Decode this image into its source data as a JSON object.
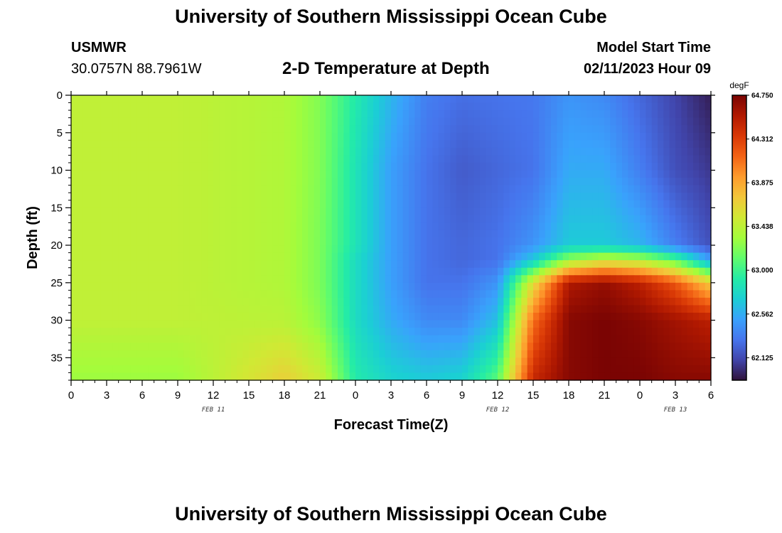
{
  "header": {
    "title": "University of Southern Mississippi Ocean Cube",
    "station_name": "USMWR",
    "coordinates": "30.0757N  88.7961W",
    "plot_title": "2-D Temperature at Depth",
    "model_start_label": "Model Start Time",
    "model_start_value": "02/11/2023 Hour 09"
  },
  "footer": {
    "title": "University of Southern Mississippi Ocean Cube"
  },
  "chart_data": {
    "type": "heatmap",
    "title": "2-D Temperature at Depth",
    "xlabel": "Forecast Time(Z)",
    "ylabel": "Depth (ft)",
    "x_tick_labels": [
      "0",
      "3",
      "6",
      "9",
      "12",
      "15",
      "18",
      "21",
      "0",
      "3",
      "6",
      "9",
      "12",
      "15",
      "18",
      "21",
      "0",
      "3",
      "6"
    ],
    "x_range_hours": [
      0,
      54
    ],
    "date_labels": [
      {
        "text": "FEB 11",
        "hour": 12
      },
      {
        "text": "FEB 12",
        "hour": 36
      },
      {
        "text": "FEB 13",
        "hour": 51
      }
    ],
    "y_tick_labels": [
      0,
      5,
      10,
      15,
      20,
      25,
      30,
      35
    ],
    "y_range_ft": [
      0,
      38
    ],
    "colorbar": {
      "unit": "degF",
      "min": 61.9,
      "max": 64.75,
      "ticks": [
        64.75,
        64.312,
        63.875,
        63.438,
        63.0,
        62.562,
        62.125
      ],
      "tick_labels": [
        "64.750",
        "64.312",
        "63.875",
        "63.438",
        "63.000",
        "62.562",
        "62.125"
      ],
      "colors": [
        "#30123b",
        "#4145ab",
        "#4675ed",
        "#39a2fc",
        "#1bcfd4",
        "#24eca6",
        "#61fc6c",
        "#a4fc3b",
        "#d1e834",
        "#f3c63a",
        "#fe9b2d",
        "#f36315",
        "#d93806",
        "#b11901",
        "#7a0403"
      ]
    },
    "depth_levels_ft": [
      0,
      10,
      20,
      22,
      25,
      30,
      38
    ],
    "time_hours": [
      0,
      9,
      18,
      21,
      24,
      27,
      30,
      33,
      36,
      39,
      42,
      45,
      48,
      51,
      54
    ],
    "temperature_degF": [
      [
        63.45,
        63.45,
        63.38,
        63.22,
        62.9,
        62.6,
        62.35,
        62.28,
        62.3,
        62.32,
        62.45,
        62.4,
        62.25,
        62.1,
        61.95
      ],
      [
        63.45,
        63.45,
        63.38,
        63.22,
        62.85,
        62.5,
        62.3,
        62.2,
        62.25,
        62.3,
        62.55,
        62.55,
        62.35,
        62.15,
        62.05
      ],
      [
        63.45,
        63.45,
        63.38,
        63.2,
        62.85,
        62.5,
        62.3,
        62.25,
        62.3,
        62.45,
        62.7,
        62.7,
        62.6,
        62.35,
        62.15
      ],
      [
        63.45,
        63.45,
        63.38,
        63.2,
        62.8,
        62.5,
        62.3,
        62.25,
        62.3,
        62.7,
        63.3,
        63.5,
        63.4,
        63.1,
        62.5
      ],
      [
        63.45,
        63.45,
        63.38,
        63.2,
        62.8,
        62.5,
        62.3,
        62.3,
        62.45,
        63.6,
        64.55,
        64.65,
        64.5,
        64.2,
        63.7
      ],
      [
        63.45,
        63.45,
        63.42,
        63.25,
        62.8,
        62.55,
        62.4,
        62.4,
        62.65,
        64.1,
        64.7,
        64.75,
        64.7,
        64.6,
        64.5
      ],
      [
        63.3,
        63.3,
        63.68,
        63.5,
        62.9,
        62.75,
        62.7,
        62.75,
        63.1,
        64.45,
        64.7,
        64.75,
        64.75,
        64.7,
        64.7
      ]
    ]
  }
}
